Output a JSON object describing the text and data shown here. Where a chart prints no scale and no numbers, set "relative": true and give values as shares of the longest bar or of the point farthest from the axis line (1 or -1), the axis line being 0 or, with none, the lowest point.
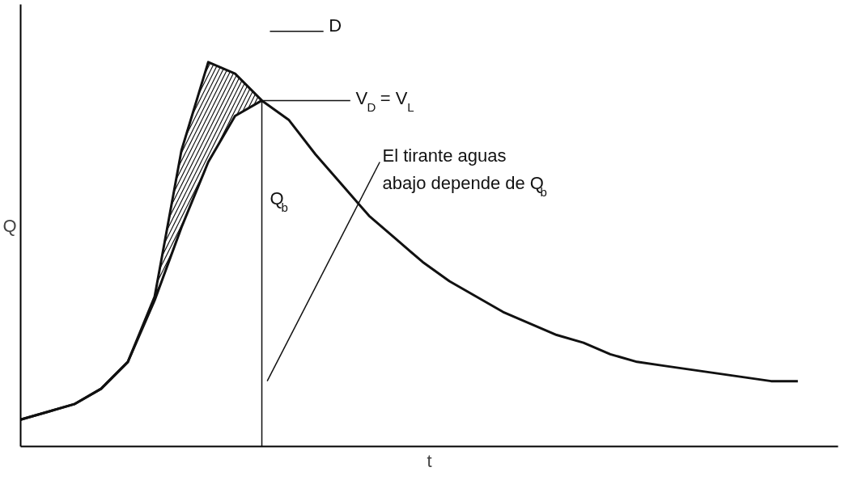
{
  "chart_data": {
    "type": "line",
    "relative": true,
    "xlabel": "t",
    "ylabel": "Q",
    "categories": [
      null,
      null,
      null,
      null,
      null,
      null,
      null,
      null,
      null,
      null,
      null,
      null,
      null,
      null,
      null,
      null,
      null,
      null,
      null,
      null,
      null,
      null,
      null,
      null,
      null,
      null,
      null,
      null,
      null,
      null
    ],
    "series": [
      {
        "color": "#111111",
        "values": [
          0.07,
          0.09,
          0.11,
          0.15,
          0.22,
          0.39,
          0.77,
          1.0,
          0.97,
          0.9,
          null,
          null,
          null,
          null,
          null,
          null,
          null,
          null,
          null,
          null,
          null,
          null,
          null,
          null,
          null,
          null,
          null,
          null,
          null,
          null
        ],
        "lower": [
          null,
          null,
          null,
          null,
          0.22,
          0.38,
          0.57,
          0.74,
          0.86,
          0.9,
          null,
          null,
          null,
          null,
          null,
          null,
          null,
          null,
          null,
          null,
          null,
          null,
          null,
          null,
          null,
          null,
          null,
          null,
          null,
          null
        ],
        "upper": [
          null,
          null,
          null,
          null,
          0.22,
          0.39,
          0.77,
          1.0,
          0.97,
          0.9,
          null,
          null,
          null,
          null,
          null,
          null,
          null,
          null,
          null,
          null,
          null,
          null,
          null,
          null,
          null,
          null,
          null,
          null,
          null,
          null
        ]
      },
      {
        "color": "#111111",
        "values": [
          0.07,
          0.09,
          0.11,
          0.15,
          0.22,
          0.38,
          0.57,
          0.74,
          0.86,
          0.9,
          0.85,
          0.76,
          0.68,
          0.6,
          0.54,
          0.48,
          0.43,
          0.39,
          0.35,
          0.32,
          0.29,
          0.27,
          0.24,
          0.22,
          0.21,
          0.2,
          0.19,
          0.18,
          0.17,
          0.17
        ]
      }
    ],
    "annotations": [
      "D",
      "V$_{D}$ = V$_{L}$",
      "Q$_{b}$",
      "El tirante aguas abajo depende de Q$_{b}$"
    ],
    "marker": "none",
    "line_style": "solid"
  }
}
